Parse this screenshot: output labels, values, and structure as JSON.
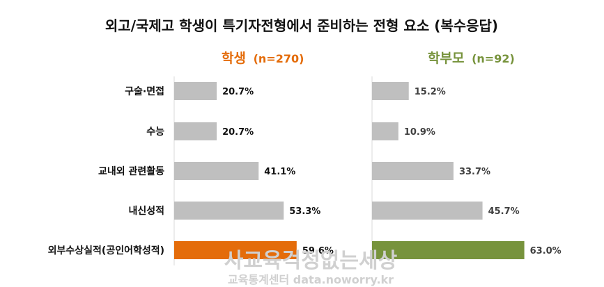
{
  "chart_data": {
    "type": "bar",
    "orientation": "horizontal",
    "title": "외고/국제고 학생이 특기자전형에서 준비하는 전형 요소 (복수응답)",
    "categories": [
      "구술·면접",
      "수능",
      "교내외 관련활동",
      "내신성적",
      "외부수상실적(공인어학성적)"
    ],
    "value_suffix": "%",
    "panels": [
      {
        "name": "학생",
        "n_label": "(n=270)",
        "header_color": "#e46c0a",
        "values": [
          20.7,
          20.7,
          41.1,
          53.3,
          59.6
        ],
        "value_labels": [
          "20.7%",
          "20.7%",
          "41.1%",
          "53.3%",
          "59.6%"
        ],
        "highlight_color": "#e46c0a"
      },
      {
        "name": "학부모",
        "n_label": "(n=92)",
        "header_color": "#77933c",
        "values": [
          15.2,
          10.9,
          33.7,
          45.7,
          63.0
        ],
        "value_labels": [
          "15.2%",
          "10.9%",
          "33.7%",
          "45.7%",
          "63.0%"
        ],
        "highlight_color": "#77933c"
      }
    ],
    "bar_color": "#bfbfbf",
    "highlight_index": 4,
    "xlim": [
      0,
      100
    ],
    "grid": false,
    "legend": "none"
  },
  "watermark": {
    "main": "사교육걱정없는세상",
    "sub": "교육통계센터 data.noworry.kr"
  }
}
